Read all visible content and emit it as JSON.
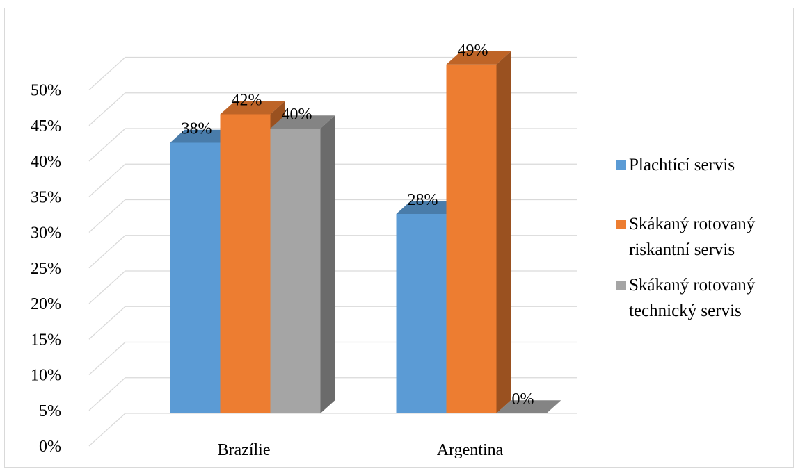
{
  "chart_data": {
    "type": "bar",
    "title": "",
    "xlabel": "",
    "ylabel": "",
    "categories": [
      "Brazílie",
      "Argentina"
    ],
    "series": [
      {
        "name": "Plachtící servis",
        "values": [
          38,
          28
        ],
        "color": "#5b9bd5"
      },
      {
        "name": "Skákaný rotovaný riskantní servis",
        "values": [
          42,
          49
        ],
        "color": "#ed7d31"
      },
      {
        "name": "Skákaný rotovaný technický servis",
        "values": [
          40,
          0
        ],
        "color": "#a5a5a5"
      }
    ],
    "data_labels": [
      [
        "38%",
        "28%"
      ],
      [
        "42%",
        "49%"
      ],
      [
        "40%",
        "0%"
      ]
    ],
    "y_ticks": [
      "0%",
      "5%",
      "10%",
      "15%",
      "20%",
      "25%",
      "30%",
      "35%",
      "40%",
      "45%",
      "50%"
    ],
    "ylim": [
      0,
      50
    ],
    "grid": true,
    "legend": {
      "placement": "right",
      "entries": [
        [
          "Plachtící servis"
        ],
        [
          "Skákaný rotovaný",
          "riskantní servis"
        ],
        [
          "Skákaný rotovaný",
          "technický servis"
        ]
      ]
    },
    "style": "3d-clustered-column"
  }
}
